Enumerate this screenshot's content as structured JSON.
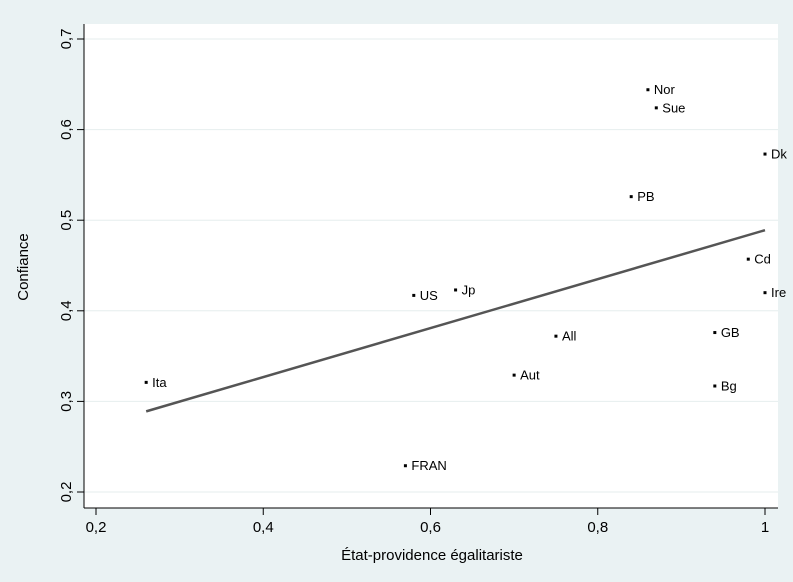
{
  "chart_data": {
    "type": "scatter",
    "title": "",
    "xlabel": "État-providence égalitariste",
    "ylabel": "Confiance",
    "xlim": [
      0.2,
      1.0
    ],
    "ylim": [
      0.2,
      0.7
    ],
    "xticks": [
      0.2,
      0.4,
      0.6,
      0.8,
      1.0
    ],
    "xtick_labels": [
      "0,2",
      "0,4",
      "0,6",
      "0,8",
      "1"
    ],
    "yticks": [
      0.2,
      0.3,
      0.4,
      0.5,
      0.6,
      0.7
    ],
    "ytick_labels": [
      "0,2",
      "0,3",
      "0,4",
      "0,5",
      "0,6",
      "0,7"
    ],
    "grid": "horizontal",
    "points": [
      {
        "label": "Ita",
        "x": 0.26,
        "y": 0.321
      },
      {
        "label": "FRAN",
        "x": 0.57,
        "y": 0.229
      },
      {
        "label": "US",
        "x": 0.58,
        "y": 0.417
      },
      {
        "label": "Jp",
        "x": 0.63,
        "y": 0.423
      },
      {
        "label": "Aut",
        "x": 0.7,
        "y": 0.329
      },
      {
        "label": "All",
        "x": 0.75,
        "y": 0.372
      },
      {
        "label": "PB",
        "x": 0.84,
        "y": 0.526
      },
      {
        "label": "Nor",
        "x": 0.86,
        "y": 0.644
      },
      {
        "label": "Sue",
        "x": 0.87,
        "y": 0.624
      },
      {
        "label": "GB",
        "x": 0.94,
        "y": 0.376
      },
      {
        "label": "Bg",
        "x": 0.94,
        "y": 0.317
      },
      {
        "label": "Cd",
        "x": 0.98,
        "y": 0.457
      },
      {
        "label": "Dk",
        "x": 1.0,
        "y": 0.573
      },
      {
        "label": "Ire",
        "x": 1.0,
        "y": 0.42
      }
    ],
    "fit_line": {
      "x": [
        0.26,
        1.0
      ],
      "y": [
        0.289,
        0.489
      ]
    }
  },
  "colors": {
    "background": "#eaf2f3",
    "plot_area": "#ffffff",
    "fit_line": "#555555",
    "marker": "#000000",
    "grid": "#e6eeee"
  }
}
